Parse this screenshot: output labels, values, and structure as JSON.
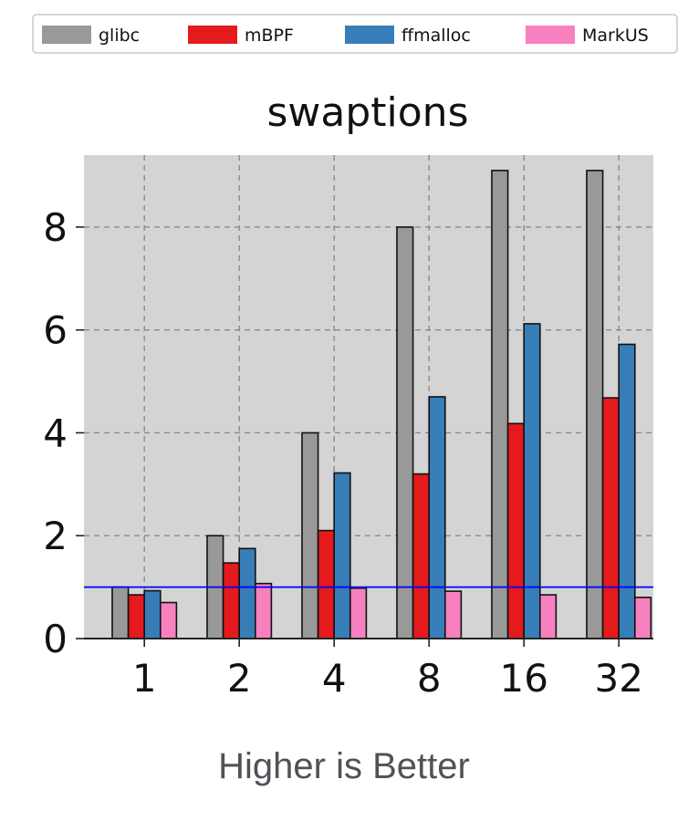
{
  "chart_data": {
    "type": "bar",
    "title": "swaptions",
    "xlabel": "",
    "ylabel": "",
    "categories": [
      "1",
      "2",
      "4",
      "8",
      "16",
      "32"
    ],
    "series": [
      {
        "name": "glibc",
        "values": [
          1.0,
          2.0,
          4.0,
          8.0,
          9.1,
          9.1
        ],
        "color": "#999999"
      },
      {
        "name": "mBPF",
        "values": [
          0.85,
          1.47,
          2.1,
          3.2,
          4.18,
          4.68
        ],
        "color": "#e41a1c"
      },
      {
        "name": "ffmalloc",
        "values": [
          0.93,
          1.75,
          3.22,
          4.7,
          6.12,
          5.72
        ],
        "color": "#377eb8"
      },
      {
        "name": "MarkUS",
        "values": [
          0.7,
          1.07,
          0.98,
          0.92,
          0.85,
          0.8
        ],
        "color": "#f781bf"
      }
    ],
    "ylim": [
      0,
      9.4
    ],
    "yticks": [
      0,
      2,
      4,
      6,
      8
    ],
    "reference_line": {
      "y": 1.0,
      "color": "#0000ff"
    },
    "grid": true,
    "legend": "top"
  },
  "caption": "Higher is Better"
}
